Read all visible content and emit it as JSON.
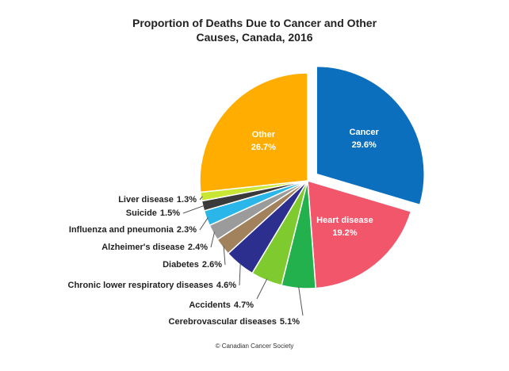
{
  "chart_data": {
    "type": "pie",
    "title": "Proportion of Deaths Due to Cancer and Other Causes, Canada, 2016",
    "source": "© Canadian Cancer Society",
    "categories": [
      "Cancer",
      "Heart disease",
      "Cerebrovascular diseases",
      "Accidents",
      "Chronic lower respiratory diseases",
      "Diabetes",
      "Alzheimer's disease",
      "Influenza and pneumonia",
      "Suicide",
      "Liver disease",
      "Other"
    ],
    "values": [
      29.6,
      19.2,
      5.1,
      4.7,
      4.6,
      2.6,
      2.4,
      2.3,
      1.5,
      1.3,
      26.7
    ],
    "value_labels": [
      "29.6%",
      "19.2%",
      "5.1%",
      "4.7%",
      "4.6%",
      "2.6%",
      "2.4%",
      "2.3%",
      "1.5%",
      "1.3%",
      "26.7%"
    ],
    "colors": [
      "#0b6fbe",
      "#f2566b",
      "#23b14d",
      "#7fcb2f",
      "#2d2f8e",
      "#a2825c",
      "#9b9b9b",
      "#2bb6ea",
      "#3a3a3a",
      "#c9e634",
      "#ffad00"
    ],
    "exploded": [
      0
    ]
  }
}
